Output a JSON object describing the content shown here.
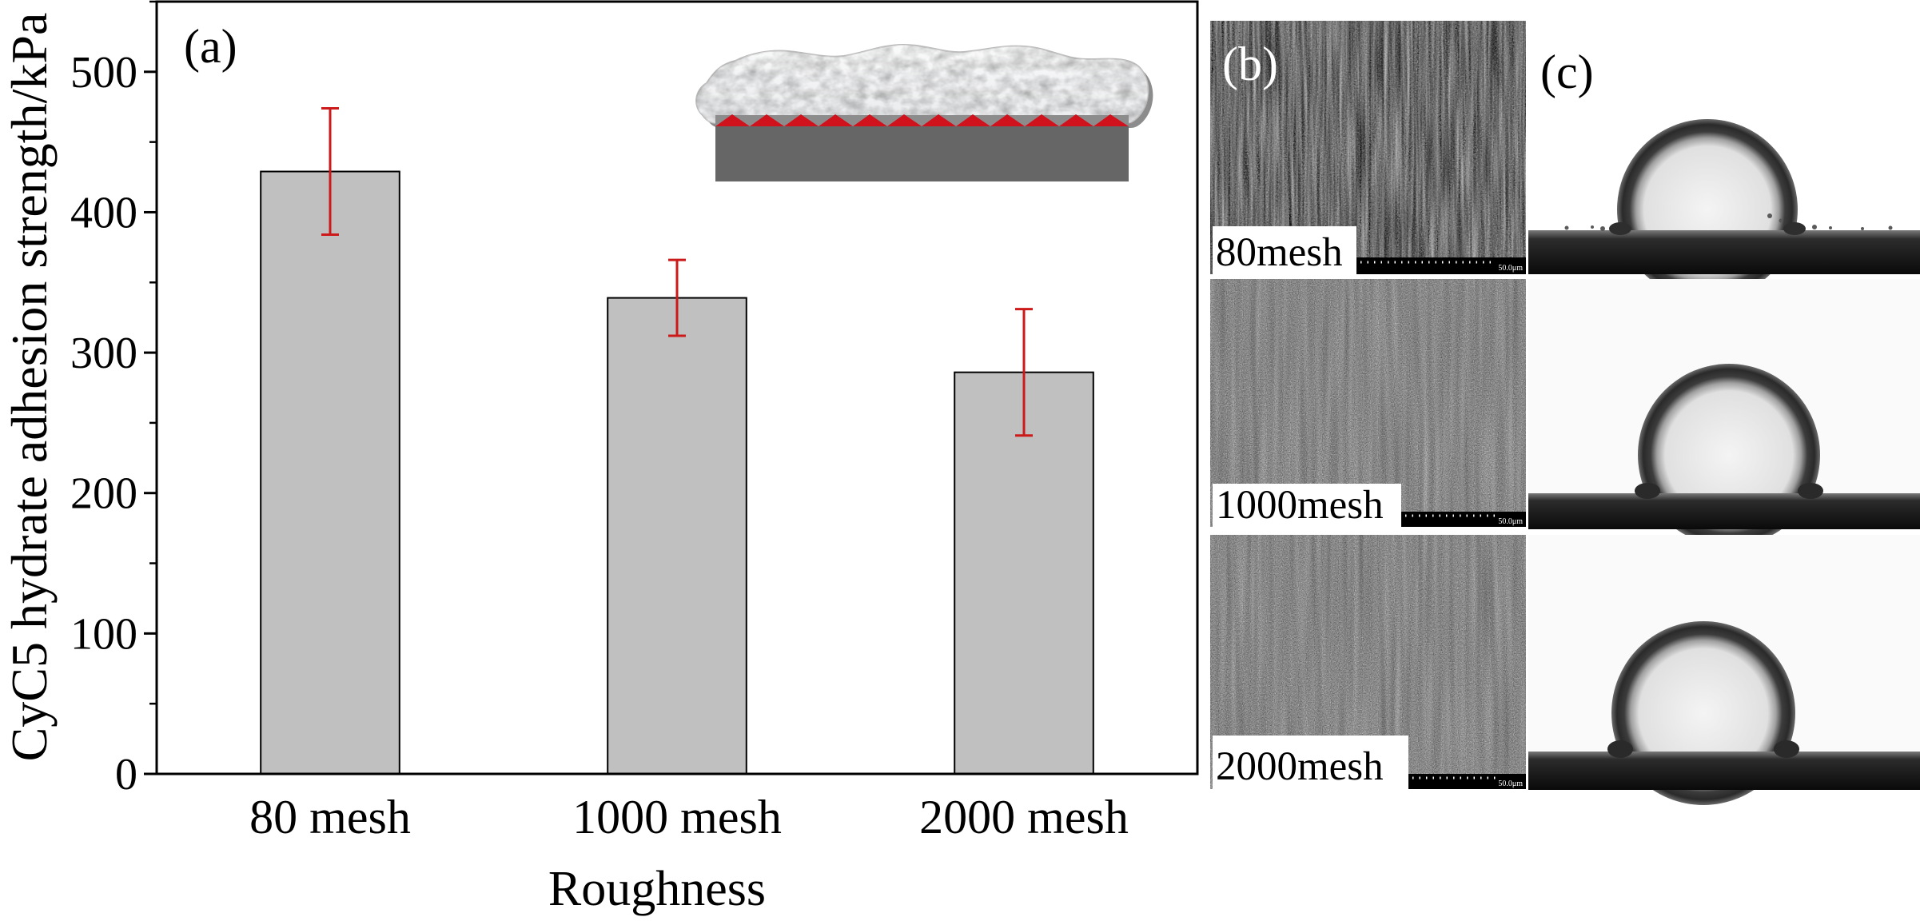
{
  "panel_labels": {
    "a": "(a)",
    "b": "(b)",
    "c": "(c)"
  },
  "chart_data": {
    "type": "bar",
    "categories": [
      "80 mesh",
      "1000 mesh",
      "2000 mesh"
    ],
    "values": [
      429,
      339,
      286
    ],
    "errors": [
      45,
      27,
      45
    ],
    "xlabel": "Roughness",
    "ylabel": "CyC5 hydrate adhesion strength/kPa",
    "ylim": [
      0,
      550
    ],
    "yticks": [
      0,
      100,
      200,
      300,
      400,
      500
    ],
    "minor_tick_step": 50,
    "grid": false,
    "bar_color": "#c0c0c0",
    "error_color": "#cc1a1a"
  },
  "sem_panels": [
    {
      "label": "80mesh",
      "scale_bar_text": "50.0μm"
    },
    {
      "label": "1000mesh",
      "scale_bar_text": "50.0μm"
    },
    {
      "label": "2000mesh",
      "scale_bar_text": "50.0μm"
    }
  ],
  "colors": {
    "substrate": "#666666",
    "roughness_teeth": "#d0121c",
    "hydrate_shadow": "#8c8c8c"
  }
}
